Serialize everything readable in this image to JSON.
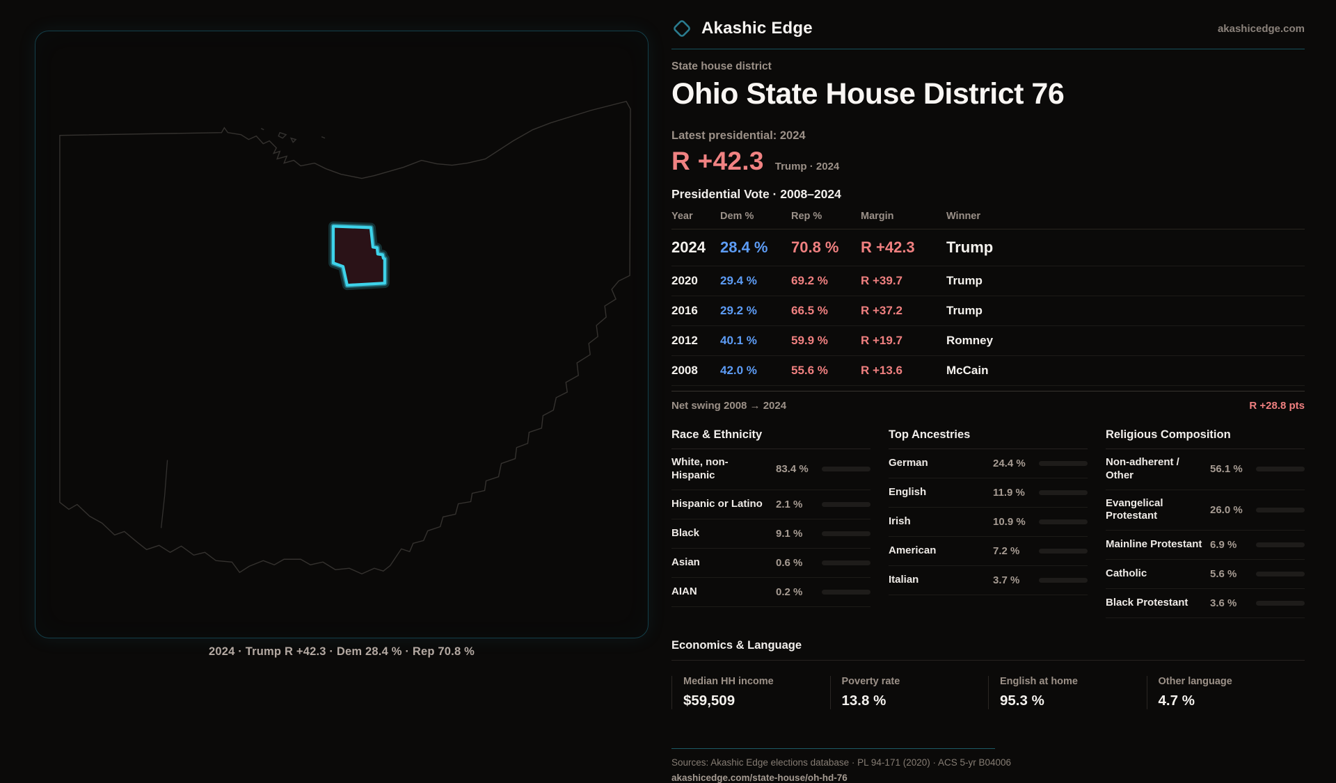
{
  "brand": {
    "name": "Akashic Edge",
    "site": "akashicedge.com",
    "accent_teal": "#2aa5bf",
    "district_outline": "#3ed3ea",
    "district_fill": "#2a1217"
  },
  "map": {
    "caption": "2024 · Trump R +42.3 · Dem 28.4 % · Rep 70.8 %"
  },
  "header": {
    "kicker": "State house district",
    "title": "Ohio State House District 76",
    "latest_label": "Latest presidential: 2024",
    "hero_margin": "R +42.3",
    "hero_sub": "Trump · 2024"
  },
  "colors": {
    "dem_blue": "#5d9cf5",
    "rep_red": "#f08080",
    "steel_bar": "#9db4ca"
  },
  "vote_table": {
    "title": "Presidential Vote · 2008–2024",
    "columns": {
      "year": "Year",
      "dem": "Dem %",
      "rep": "Rep %",
      "margin": "Margin",
      "winner": "Winner"
    },
    "rows": [
      {
        "year": "2024",
        "dem": "28.4 %",
        "rep": "70.8 %",
        "margin": "R +42.3",
        "winner": "Trump",
        "featured": true
      },
      {
        "year": "2020",
        "dem": "29.4 %",
        "rep": "69.2 %",
        "margin": "R +39.7",
        "winner": "Trump"
      },
      {
        "year": "2016",
        "dem": "29.2 %",
        "rep": "66.5 %",
        "margin": "R +37.2",
        "winner": "Trump"
      },
      {
        "year": "2012",
        "dem": "40.1 %",
        "rep": "59.9 %",
        "margin": "R +19.7",
        "winner": "Romney"
      },
      {
        "year": "2008",
        "dem": "42.0 %",
        "rep": "55.6 %",
        "margin": "R +13.6",
        "winner": "McCain"
      }
    ],
    "net_swing_label": "Net swing 2008 → 2024",
    "net_swing_value": "R +28.8 pts"
  },
  "race": {
    "title": "Race & Ethnicity",
    "rows": [
      {
        "label": "White, non-Hispanic",
        "value": "83.4 %",
        "pct": 83.4,
        "color": "#9db4ca"
      },
      {
        "label": "Hispanic or Latino",
        "value": "2.1 %",
        "pct": 2.1,
        "color": "#e3941c"
      },
      {
        "label": "Black",
        "value": "9.1 %",
        "pct": 9.1,
        "color": "#8b7ae0"
      },
      {
        "label": "Asian",
        "value": "0.6 %",
        "pct": 0.6,
        "color": "#9db4ca"
      },
      {
        "label": "AIAN",
        "value": "0.2 %",
        "pct": 0.2,
        "color": "#9db4ca"
      }
    ]
  },
  "ancestry": {
    "title": "Top Ancestries",
    "rows": [
      {
        "label": "German",
        "value": "24.4 %",
        "pct": 24.4,
        "color": "#9db4ca"
      },
      {
        "label": "English",
        "value": "11.9 %",
        "pct": 11.9,
        "color": "#9db4ca"
      },
      {
        "label": "Irish",
        "value": "10.9 %",
        "pct": 10.9,
        "color": "#9db4ca"
      },
      {
        "label": "American",
        "value": "7.2 %",
        "pct": 7.2,
        "color": "#9db4ca"
      },
      {
        "label": "Italian",
        "value": "3.7 %",
        "pct": 3.7,
        "color": "#9db4ca"
      }
    ]
  },
  "religion": {
    "title": "Religious Composition",
    "rows": [
      {
        "label": "Non-adherent / Other",
        "value": "56.1 %",
        "pct": 56.1,
        "color": "#5d6577"
      },
      {
        "label": "Evangelical Protestant",
        "value": "26.0 %",
        "pct": 26.0,
        "color": "#e07575"
      },
      {
        "label": "Mainline Protestant",
        "value": "6.9 %",
        "pct": 6.9,
        "color": "#4792e8"
      },
      {
        "label": "Catholic",
        "value": "5.6 %",
        "pct": 5.6,
        "color": "#e0a21c"
      },
      {
        "label": "Black Protestant",
        "value": "3.6 %",
        "pct": 3.6,
        "color": "#8d7ce8"
      }
    ]
  },
  "economics": {
    "title": "Economics & Language",
    "stats": [
      {
        "label": "Median HH income",
        "value": "$59,509"
      },
      {
        "label": "Poverty rate",
        "value": "13.8 %"
      },
      {
        "label": "English at home",
        "value": "95.3 %"
      },
      {
        "label": "Other language",
        "value": "4.7 %"
      }
    ]
  },
  "footer": {
    "sources": "Sources: Akashic Edge elections database · PL 94-171 (2020) · ACS 5-yr B04006",
    "permalink": "akashicedge.com/state-house/oh-hd-76"
  }
}
